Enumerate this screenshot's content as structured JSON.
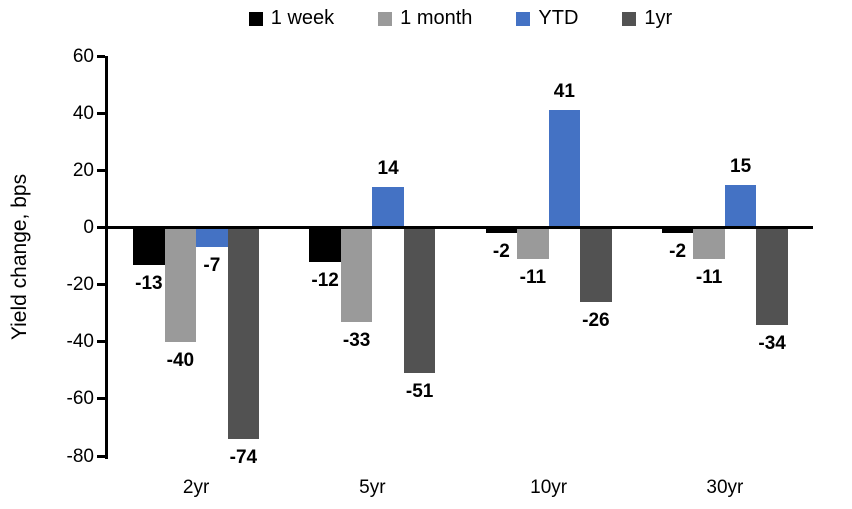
{
  "chart_data": {
    "type": "bar",
    "title": "",
    "xlabel": "",
    "ylabel": "Yield change, bps",
    "categories": [
      "2yr",
      "5yr",
      "10yr",
      "30yr"
    ],
    "series": [
      {
        "name": "1 week",
        "color": "#000000",
        "values": [
          -13,
          -12,
          -2,
          -2
        ]
      },
      {
        "name": "1 month",
        "color": "#9A9A9A",
        "values": [
          -40,
          -33,
          -11,
          -11
        ]
      },
      {
        "name": "YTD",
        "color": "#4472C4",
        "values": [
          -7,
          14,
          41,
          15
        ]
      },
      {
        "name": "1yr",
        "color": "#525252",
        "values": [
          -74,
          -51,
          -26,
          -34
        ]
      }
    ],
    "ylim": [
      -80,
      60
    ],
    "yticks": [
      60,
      40,
      20,
      0,
      -20,
      -40,
      -60,
      -80
    ],
    "grid": "off",
    "legend_position": "top",
    "data_labels": "outside-end"
  }
}
